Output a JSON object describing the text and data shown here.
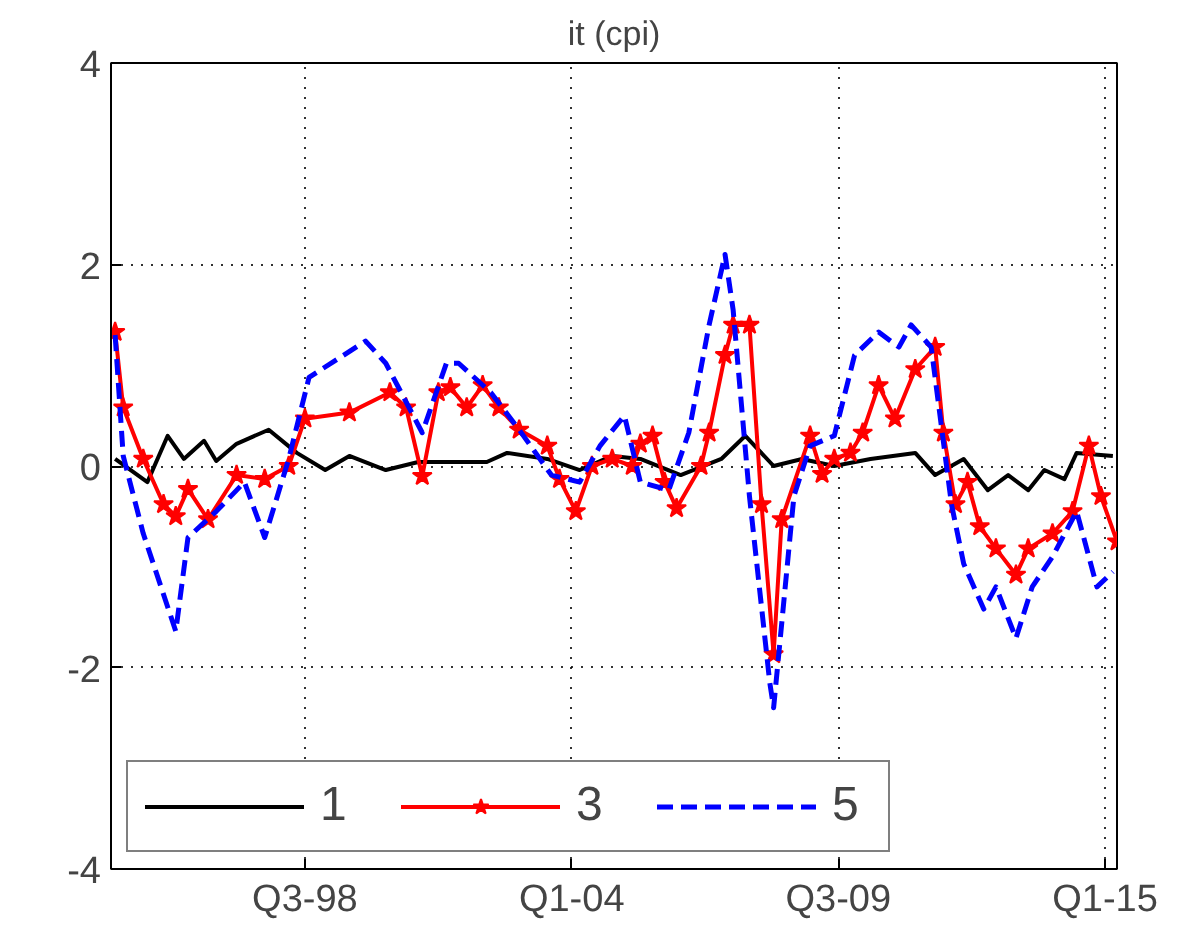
{
  "chart_data": {
    "type": "line",
    "title": "it (cpi)",
    "xlim": [
      "1994-07",
      "2015-04"
    ],
    "ylim": [
      -4,
      4
    ],
    "xticks": [
      {
        "value": "1998-07",
        "label": "Q3-98"
      },
      {
        "value": "2004-01",
        "label": "Q1-04"
      },
      {
        "value": "2009-07",
        "label": "Q3-09"
      },
      {
        "value": "2015-01",
        "label": "Q1-15"
      }
    ],
    "yticks": [
      -4,
      -2,
      0,
      2,
      4
    ],
    "grid": true,
    "legend": "bottom left",
    "series": [
      {
        "name": "1",
        "color": "#000000",
        "marker": "none",
        "line_style": "solid",
        "x": [
          "1994-08",
          "1995-04",
          "1995-09",
          "1996-01",
          "1996-06",
          "1996-09",
          "1997-02",
          "1997-10",
          "1998-05",
          "1998-12",
          "1999-06",
          "2000-03",
          "2000-11",
          "2002-04",
          "2002-09",
          "2003-07",
          "2004-03",
          "2004-11",
          "2005-06",
          "2006-04",
          "2007-02",
          "2007-08",
          "2008-03",
          "2008-10",
          "2009-06",
          "2010-03",
          "2011-02",
          "2011-07",
          "2012-02",
          "2012-08",
          "2013-01",
          "2013-06",
          "2013-10",
          "2014-03",
          "2014-06",
          "2015-03"
        ],
        "values": [
          0.07,
          -0.16,
          0.3,
          0.07,
          0.25,
          0.05,
          0.22,
          0.36,
          0.13,
          -0.04,
          0.1,
          -0.04,
          0.04,
          0.04,
          0.13,
          0.07,
          -0.04,
          0.1,
          0.07,
          -0.09,
          0.07,
          0.3,
          0,
          0.07,
          0,
          0.07,
          0.13,
          -0.09,
          0.07,
          -0.24,
          -0.09,
          -0.24,
          -0.04,
          -0.13,
          0.13,
          0.1
        ]
      },
      {
        "name": "3",
        "color": "#ff0000",
        "marker": "star",
        "line_style": "solid",
        "x": [
          "1994-08",
          "1994-10",
          "1995-03",
          "1995-08",
          "1995-11",
          "1996-02",
          "1996-07",
          "1997-02",
          "1997-09",
          "1998-03",
          "1998-07",
          "1999-06",
          "2000-04",
          "2000-08",
          "2000-12",
          "2001-04",
          "2001-07",
          "2001-11",
          "2002-03",
          "2002-07",
          "2002-12",
          "2003-07",
          "2003-10",
          "2004-02",
          "2004-06",
          "2004-11",
          "2005-04",
          "2005-06",
          "2005-09",
          "2005-12",
          "2006-03",
          "2006-09",
          "2006-11",
          "2007-03",
          "2007-05",
          "2007-09",
          "2007-12",
          "2008-03",
          "2008-05",
          "2008-12",
          "2009-03",
          "2009-06",
          "2009-10",
          "2010-01",
          "2010-05",
          "2010-09",
          "2011-02",
          "2011-07",
          "2011-09",
          "2011-12",
          "2012-03",
          "2012-06",
          "2012-10",
          "2013-03",
          "2013-06",
          "2013-12",
          "2014-05",
          "2014-09",
          "2014-12",
          "2015-04"
        ],
        "values": [
          1.33,
          0.58,
          0.07,
          -0.38,
          -0.5,
          -0.23,
          -0.53,
          -0.09,
          -0.13,
          0,
          0.47,
          0.53,
          0.73,
          0.58,
          -0.1,
          0.73,
          0.78,
          0.58,
          0.8,
          0.58,
          0.36,
          0.2,
          -0.13,
          -0.45,
          0,
          0.07,
          0,
          0.22,
          0.3,
          -0.16,
          -0.42,
          0,
          0.33,
          1.1,
          1.4,
          1.4,
          -0.38,
          -1.87,
          -0.53,
          0.3,
          -0.08,
          0.07,
          0.13,
          0.33,
          0.8,
          0.47,
          0.96,
          1.18,
          0.33,
          -0.38,
          -0.16,
          -0.6,
          -0.82,
          -1.08,
          -0.82,
          -0.67,
          -0.45,
          0.2,
          -0.3,
          -0.75
        ]
      },
      {
        "name": "5",
        "color": "#0000ff",
        "marker": "none",
        "line_style": "dashed",
        "x": [
          "1994-08",
          "1994-10",
          "1995-03",
          "1995-11",
          "1996-02",
          "1996-09",
          "1997-04",
          "1997-09",
          "1998-03",
          "1998-08",
          "1999-10",
          "2000-03",
          "2000-12",
          "2001-06",
          "2001-09",
          "2002-05",
          "2002-12",
          "2003-08",
          "2004-03",
          "2004-08",
          "2005-02",
          "2005-06",
          "2006-01",
          "2006-06",
          "2006-11",
          "2007-03",
          "2007-05",
          "2007-09",
          "2008-02",
          "2008-03",
          "2008-08",
          "2008-12",
          "2009-06",
          "2009-11",
          "2010-05",
          "2010-10",
          "2011-01",
          "2011-06",
          "2011-11",
          "2012-02",
          "2012-07",
          "2012-10",
          "2013-03",
          "2013-07",
          "2013-12",
          "2014-06",
          "2014-11",
          "2015-03"
        ],
        "values": [
          1.3,
          0.1,
          -0.67,
          -1.64,
          -0.71,
          -0.45,
          -0.16,
          -0.71,
          0.07,
          0.88,
          1.24,
          1.02,
          0.33,
          1.02,
          1.02,
          0.73,
          0.36,
          -0.09,
          -0.16,
          0.2,
          0.5,
          -0.16,
          -0.24,
          0.33,
          1.4,
          2.1,
          1.55,
          -0.3,
          -2.15,
          -2.4,
          -0.3,
          0.2,
          0.3,
          1.1,
          1.33,
          1.18,
          1.4,
          1.18,
          -0.38,
          -0.97,
          -1.42,
          -1.2,
          -1.71,
          -1.2,
          -0.9,
          -0.45,
          -1.2,
          -1.05
        ]
      }
    ]
  }
}
